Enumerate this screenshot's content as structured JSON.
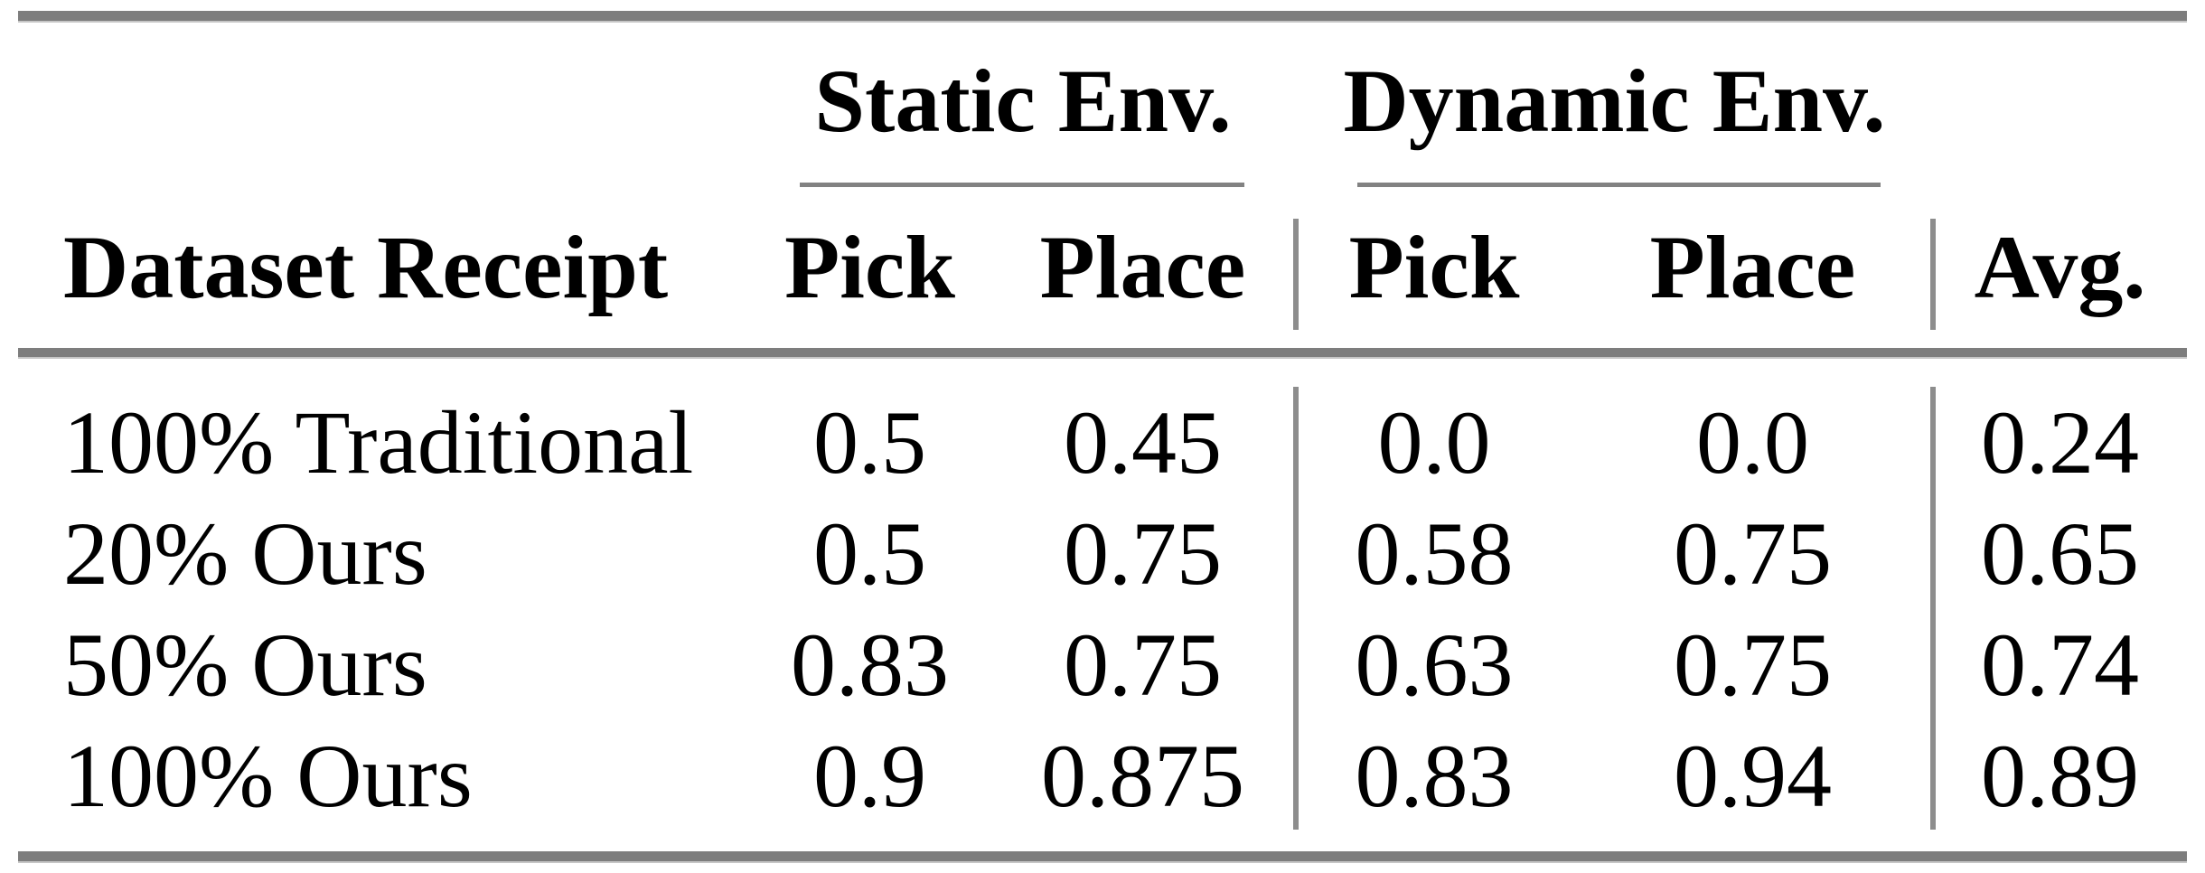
{
  "table": {
    "groups": [
      {
        "label": "Static Env."
      },
      {
        "label": "Dynamic Env."
      }
    ],
    "columns": [
      "Dataset Receipt",
      "Pick",
      "Place",
      "Pick",
      "Place",
      "Avg."
    ],
    "rows": [
      [
        "100% Traditional",
        "0.5",
        "0.45",
        "0.0",
        "0.0",
        "0.24"
      ],
      [
        "20% Ours",
        "0.5",
        "0.75",
        "0.58",
        "0.75",
        "0.65"
      ],
      [
        "50% Ours",
        "0.83",
        "0.75",
        "0.63",
        "0.75",
        "0.74"
      ],
      [
        "100% Ours",
        "0.9",
        "0.875",
        "0.83",
        "0.94",
        "0.89"
      ]
    ],
    "colors": {
      "text": "#000000",
      "background": "#ffffff",
      "heavy_rule": "#7d7d7d",
      "group_underline": "#828282",
      "vertical_separator": "#8d8d8d"
    }
  }
}
